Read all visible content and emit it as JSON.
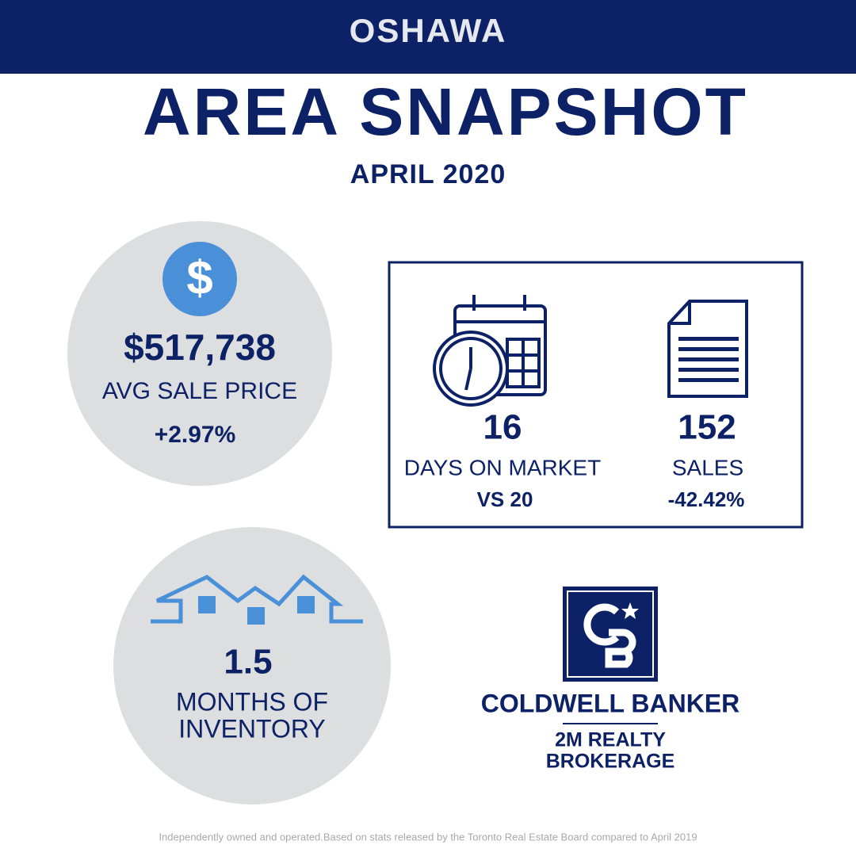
{
  "header": {
    "title": "OSHAWA"
  },
  "title": "AREA SNAPSHOT",
  "subtitle": "APRIL 2020",
  "avg_price": {
    "icon": "$",
    "value": "$517,738",
    "label": "AVG SALE PRICE",
    "change": "+2.97%"
  },
  "days_on_market": {
    "value": "16",
    "label": "DAYS ON MARKET",
    "comparison": "VS 20"
  },
  "sales": {
    "value": "152",
    "label": "SALES",
    "change": "-42.42%"
  },
  "inventory": {
    "value": "1.5",
    "label_lines": [
      "MONTHS OF",
      "INVENTORY"
    ]
  },
  "brand": {
    "name": "COLDWELL BANKER",
    "office_lines": [
      "2M REALTY",
      "BROKERAGE"
    ]
  },
  "footer": "Independently owned and operated.Based on stats released by the Toronto Real Estate Board compared to April 2019"
}
